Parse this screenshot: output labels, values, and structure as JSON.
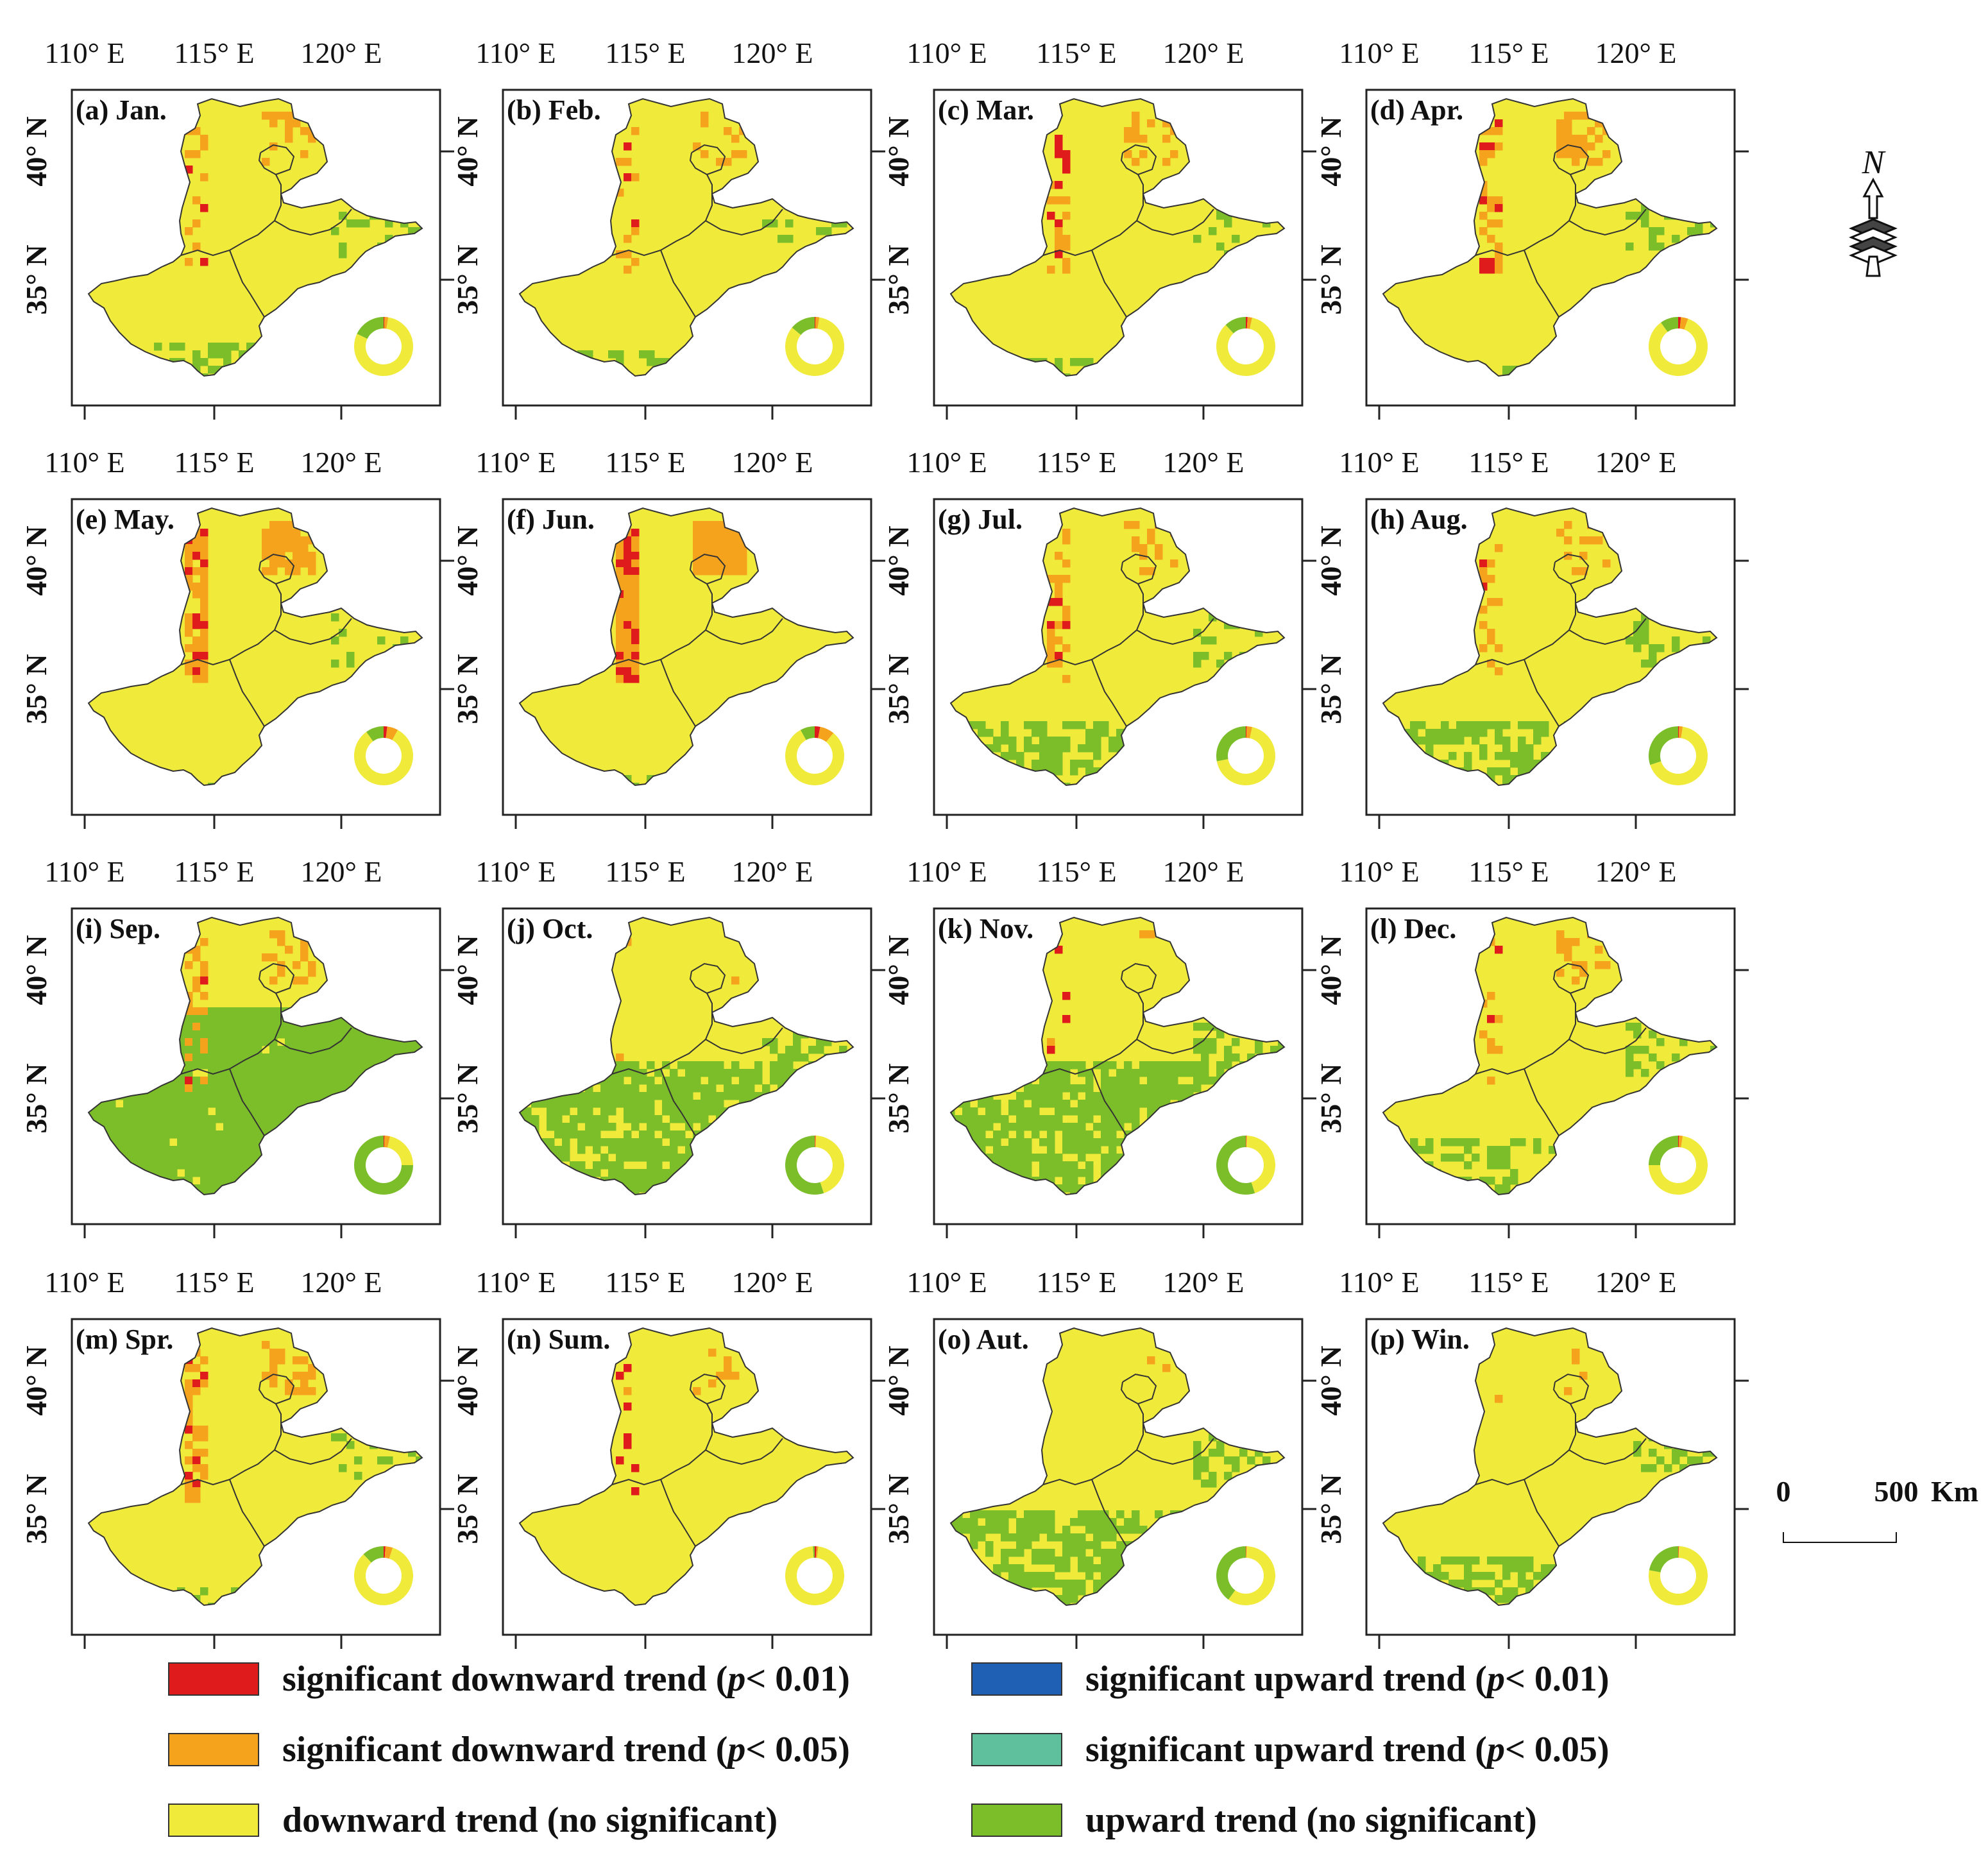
{
  "colors": {
    "sig_down_001": "#e01b1b",
    "sig_down_005": "#f5a21d",
    "down_ns": "#f0ea3b",
    "sig_up_001": "#1f5fb4",
    "sig_up_005": "#5fc09e",
    "up_ns": "#7cbd2a",
    "frame": "#222222",
    "boundary": "#333333"
  },
  "axes": {
    "x_ticks": [
      "110° E",
      "115° E",
      "120° E"
    ],
    "y_ticks": [
      "40° N",
      "35° N"
    ]
  },
  "panels": [
    {
      "label": "(a) Jan.",
      "green": 0.18,
      "orange": 0.02,
      "red": 0.005,
      "seed": 1
    },
    {
      "label": "(b) Feb.",
      "green": 0.14,
      "orange": 0.02,
      "red": 0.005,
      "seed": 2
    },
    {
      "label": "(c) Mar.",
      "green": 0.12,
      "orange": 0.025,
      "red": 0.01,
      "seed": 3
    },
    {
      "label": "(d) Apr.",
      "green": 0.1,
      "orange": 0.04,
      "red": 0.015,
      "seed": 4
    },
    {
      "label": "(e) May.",
      "green": 0.1,
      "orange": 0.06,
      "red": 0.02,
      "seed": 5
    },
    {
      "label": "(f) Jun.",
      "green": 0.08,
      "orange": 0.08,
      "red": 0.03,
      "seed": 6
    },
    {
      "label": "(g) Jul.",
      "green": 0.28,
      "orange": 0.03,
      "red": 0.005,
      "seed": 7
    },
    {
      "label": "(h) Aug.",
      "green": 0.3,
      "orange": 0.02,
      "red": 0.005,
      "seed": 8
    },
    {
      "label": "(i) Sep.",
      "green": 0.75,
      "orange": 0.03,
      "red": 0.005,
      "seed": 9
    },
    {
      "label": "(j) Oct.",
      "green": 0.55,
      "orange": 0.005,
      "red": 0.003,
      "seed": 10
    },
    {
      "label": "(k) Nov.",
      "green": 0.55,
      "orange": 0.003,
      "red": 0.003,
      "seed": 11
    },
    {
      "label": "(l) Dec.",
      "green": 0.25,
      "orange": 0.02,
      "red": 0.005,
      "seed": 12
    },
    {
      "label": "(m) Spr.",
      "green": 0.12,
      "orange": 0.04,
      "red": 0.01,
      "seed": 13
    },
    {
      "label": "(n) Sum.",
      "green": 0.01,
      "orange": 0.01,
      "red": 0.01,
      "seed": 14
    },
    {
      "label": "(o) Aut.",
      "green": 0.4,
      "orange": 0.003,
      "red": 0.002,
      "seed": 15
    },
    {
      "label": "(p) Win.",
      "green": 0.22,
      "orange": 0.003,
      "red": 0.002,
      "seed": 16
    }
  ],
  "north_arrow": {
    "label": "N"
  },
  "scale_bar": {
    "start_label": "0",
    "end_label": "500",
    "unit": "Km"
  },
  "legend": {
    "items": [
      {
        "label_prefix": "significant downward trend (",
        "p": "p",
        "label_suffix": "< 0.01)",
        "color_key": "sig_down_001"
      },
      {
        "label_prefix": "significant downward trend (",
        "p": "p",
        "label_suffix": "< 0.05)",
        "color_key": "sig_down_005"
      },
      {
        "label_prefix": "downward trend (no significant)",
        "p": "",
        "label_suffix": "",
        "color_key": "down_ns"
      },
      {
        "label_prefix": "significant upward trend (",
        "p": "p",
        "label_suffix": "< 0.01)",
        "color_key": "sig_up_001"
      },
      {
        "label_prefix": "significant upward trend (",
        "p": "p",
        "label_suffix": "< 0.05)",
        "color_key": "sig_up_005"
      },
      {
        "label_prefix": "upward trend (no significant)",
        "p": "",
        "label_suffix": "",
        "color_key": "up_ns"
      }
    ]
  }
}
